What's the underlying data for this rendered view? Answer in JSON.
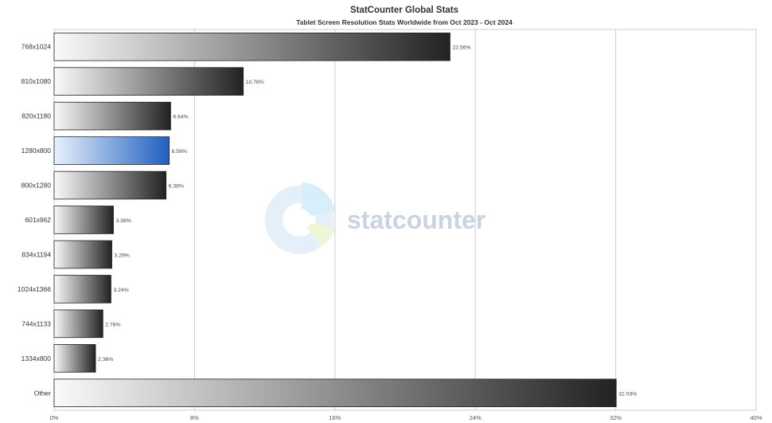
{
  "chart_data": {
    "type": "bar",
    "orientation": "horizontal",
    "title": "StatCounter Global Stats",
    "subtitle": "Tablet Screen Resolution Stats Worldwide from Oct 2023 - Oct 2024",
    "categories": [
      "768x1024",
      "810x1080",
      "820x1180",
      "1280x800",
      "800x1280",
      "601x962",
      "834x1194",
      "1024x1366",
      "744x1133",
      "1334x800",
      "Other"
    ],
    "values": [
      22.56,
      10.78,
      6.64,
      6.56,
      6.38,
      3.38,
      3.29,
      3.24,
      2.78,
      2.36,
      32.03
    ],
    "value_labels": [
      "22.56%",
      "10.78%",
      "6.64%",
      "6.56%",
      "6.38%",
      "3.38%",
      "3.29%",
      "3.24%",
      "2.78%",
      "2.36%",
      "32.03%"
    ],
    "highlighted_index": 3,
    "xlim": [
      0,
      40
    ],
    "xticks": [
      "0%",
      "8%",
      "16%",
      "24%",
      "32%",
      "40%"
    ],
    "grid": true,
    "colors": {
      "bar_dark": "#222222",
      "bar_light": "#fafafa",
      "highlight_dark": "#1f5fc0",
      "highlight_light": "#e8f1fb",
      "grid": "#cccccc"
    }
  },
  "watermark": {
    "text": "statcounter"
  }
}
